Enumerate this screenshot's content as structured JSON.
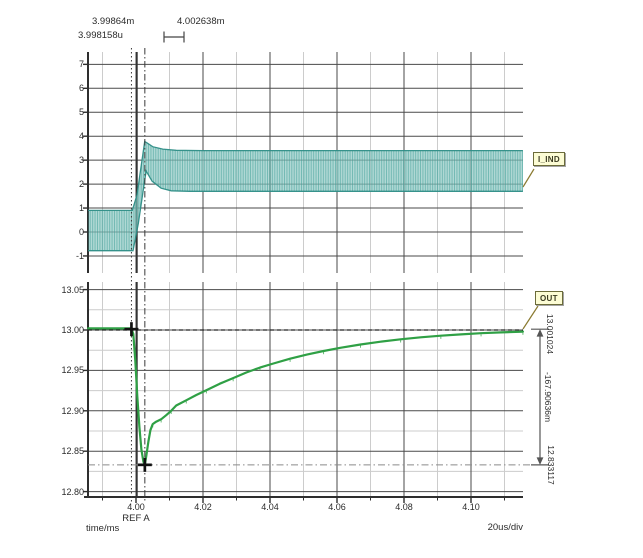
{
  "cursors": {
    "c1_label": "3.99864m",
    "c2_label": "4.002638m",
    "delta_label": "3.998158u",
    "c1_ms": 3.99864,
    "c2_ms": 4.002638
  },
  "plots": {
    "top": {
      "signal_label": "I_IND",
      "y_ticks": [
        "7",
        "6",
        "5",
        "4",
        "3",
        "2",
        "1",
        "0",
        "-1"
      ]
    },
    "bottom": {
      "signal_label": "OUT",
      "y_ticks": [
        "13.05",
        "13.00",
        "12.95",
        "12.90",
        "12.85",
        "12.80"
      ]
    }
  },
  "x_axis": {
    "ticks": [
      "4.00",
      "4.02",
      "4.04",
      "4.06",
      "4.08",
      "4.10"
    ],
    "ref_label": "REF A",
    "axis_label": "time/ms",
    "scale_label": "20us/div"
  },
  "measurements": {
    "top_value": "13.001024",
    "delta_value": "-167.90636m",
    "bottom_value": "12.833117"
  },
  "colors": {
    "band": "#3f9e97",
    "band_dark": "#2d8d86",
    "band_fill": "#a8d5d1",
    "curve": "#2fa045",
    "grid_major": "#4a4a4a",
    "grid_minor": "#cccccc",
    "axis": "#2e2e2e",
    "cursor": "#3a3a3a",
    "dim": "#555555",
    "refline_dark": "#222222",
    "refline_gray": "#8a8a8a"
  },
  "chart_data": [
    {
      "type": "area",
      "title": "I_IND inductor current ripple band",
      "x_unit": "ms",
      "xlim": [
        3.9857,
        4.1155
      ],
      "ylim": [
        -1.7,
        7.5
      ],
      "y_major_ticks": [
        -1,
        0,
        1,
        2,
        3,
        4,
        5,
        6,
        7
      ],
      "x_major_ticks": [
        4.0,
        4.02,
        4.04,
        4.06,
        4.08,
        4.1
      ],
      "x_minor_ticks": [
        3.99,
        4.01,
        4.03,
        4.05,
        4.07,
        4.09,
        4.11
      ],
      "upper_envelope": [
        [
          3.9857,
          0.9
        ],
        [
          3.9989,
          0.9
        ],
        [
          4.0003,
          1.55
        ],
        [
          4.0026,
          3.78
        ],
        [
          4.0033,
          3.72
        ],
        [
          4.005,
          3.56
        ],
        [
          4.008,
          3.46
        ],
        [
          4.012,
          3.41
        ],
        [
          4.02,
          3.4
        ],
        [
          4.1155,
          3.4
        ]
      ],
      "lower_envelope": [
        [
          3.9857,
          -0.78
        ],
        [
          3.9991,
          -0.78
        ],
        [
          4.0007,
          0.35
        ],
        [
          4.003,
          2.55
        ],
        [
          4.0048,
          2.12
        ],
        [
          4.0075,
          1.83
        ],
        [
          4.0105,
          1.72
        ],
        [
          4.016,
          1.7
        ],
        [
          4.1155,
          1.7
        ]
      ]
    },
    {
      "type": "line",
      "title": "OUT output voltage transient",
      "x_unit": "ms",
      "xlim": [
        3.9857,
        4.1155
      ],
      "ylim": [
        12.793,
        13.059
      ],
      "y_major_ticks": [
        12.8,
        12.85,
        12.9,
        12.95,
        13.0,
        13.05
      ],
      "y_minor_ticks": [
        12.825,
        12.875,
        12.925,
        12.975,
        13.025
      ],
      "x_major_ticks": [
        4.0,
        4.02,
        4.04,
        4.06,
        4.08,
        4.1
      ],
      "x_minor_ticks": [
        3.99,
        4.01,
        4.03,
        4.05,
        4.07,
        4.09,
        4.11
      ],
      "points": [
        [
          3.9857,
          13.002
        ],
        [
          3.9986,
          13.002
        ],
        [
          3.9992,
          12.995
        ],
        [
          3.9998,
          12.962
        ],
        [
          4.0004,
          12.918
        ],
        [
          4.001,
          12.88
        ],
        [
          4.0016,
          12.852
        ],
        [
          4.0022,
          12.837
        ],
        [
          4.00264,
          12.8331
        ],
        [
          4.0031,
          12.845
        ],
        [
          4.0037,
          12.862
        ],
        [
          4.0043,
          12.876
        ],
        [
          4.005,
          12.8835
        ],
        [
          4.006,
          12.8865
        ],
        [
          4.0075,
          12.8895
        ],
        [
          4.009,
          12.8945
        ],
        [
          4.0105,
          12.9
        ],
        [
          4.012,
          12.9065
        ],
        [
          4.015,
          12.913
        ],
        [
          4.018,
          12.9195
        ],
        [
          4.021,
          12.9255
        ],
        [
          4.025,
          12.9335
        ],
        [
          4.029,
          12.9405
        ],
        [
          4.033,
          12.9475
        ],
        [
          4.037,
          12.9535
        ],
        [
          4.041,
          12.9585
        ],
        [
          4.046,
          12.9645
        ],
        [
          4.051,
          12.9695
        ],
        [
          4.056,
          12.974
        ],
        [
          4.061,
          12.978
        ],
        [
          4.067,
          12.982
        ],
        [
          4.073,
          12.9855
        ],
        [
          4.079,
          12.9885
        ],
        [
          4.085,
          12.991
        ],
        [
          4.091,
          12.993
        ],
        [
          4.097,
          12.9945
        ],
        [
          4.103,
          12.996
        ],
        [
          4.109,
          12.997
        ],
        [
          4.1155,
          12.998
        ]
      ],
      "crosses": [
        [
          3.99864,
          13.001024
        ],
        [
          4.002638,
          12.833117
        ]
      ],
      "h_ref_lines": [
        {
          "v": 13.0,
          "style": "dashed"
        },
        {
          "v": 12.833117,
          "style": "dashdot"
        }
      ]
    }
  ]
}
